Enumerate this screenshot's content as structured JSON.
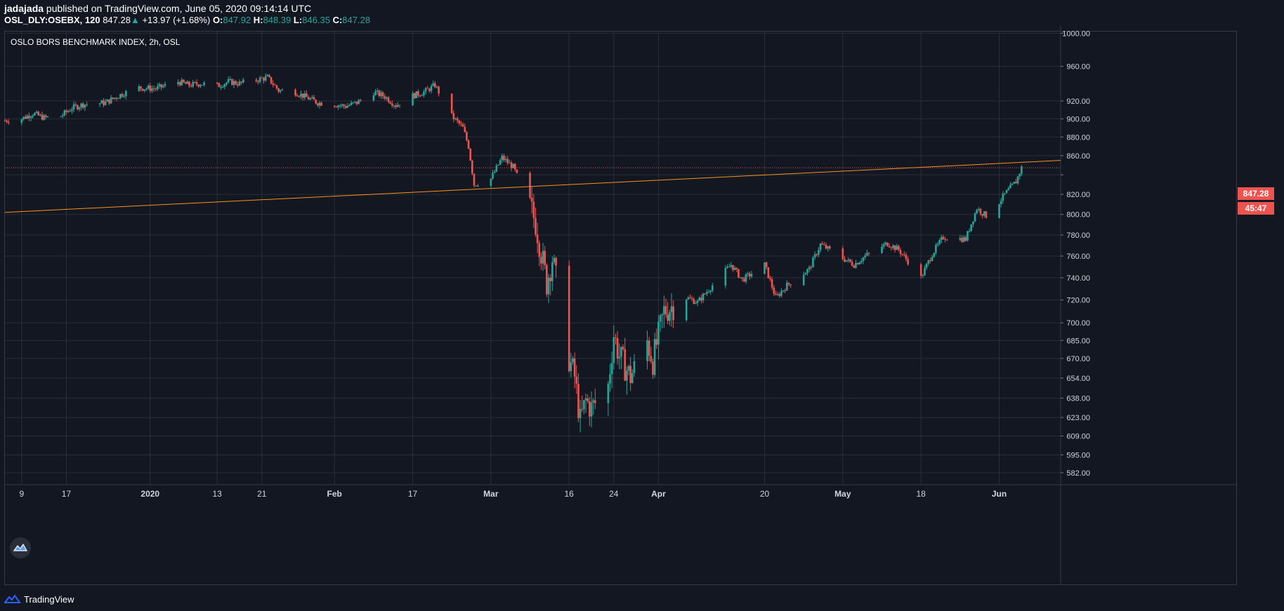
{
  "header": {
    "author": "jadajada",
    "published": "published on TradingView.com, June 05, 2020 09:14:14 UTC",
    "symbol": "OSL_DLY:OSEBX, 120",
    "last": "847.28",
    "change_arrow": "▲",
    "change": "+13.97 (+1.68%)",
    "o_label": "O:",
    "o_value": "847.92",
    "h_label": "H:",
    "h_value": "848.39",
    "l_label": "L:",
    "l_value": "846.35",
    "c_label": "C:",
    "c_value": "847.28"
  },
  "legend": {
    "title": "OSLO BORS BENCHMARK INDEX, 2h, OSL"
  },
  "price_label": {
    "value": "847.28",
    "countdown": "45:47"
  },
  "footer": {
    "brand": "TradingView"
  },
  "icons": {
    "logo": "tradingview-cloud-icon",
    "badge": "tradingview-badge-icon"
  },
  "colors": {
    "background": "#131722",
    "up": "#26a69a",
    "down": "#ef5350",
    "trendline": "#f7931a",
    "grid": "#2a2e39",
    "text": "#d1d4dc"
  },
  "chart_data": {
    "type": "candlestick",
    "title": "OSLO BORS BENCHMARK INDEX, 2h, OSL",
    "y_scale": "log",
    "ylim": [
      574,
      1002
    ],
    "y_ticks": [
      1000,
      960,
      920,
      900,
      880,
      860,
      840,
      820,
      800,
      780,
      760,
      740,
      720,
      700,
      685,
      670,
      654,
      638,
      623,
      609,
      595,
      582
    ],
    "y_tick_labels": [
      "1000.00",
      "960.00",
      "920.00",
      "900.00",
      "880.00",
      "860.00",
      "",
      "820.00",
      "800.00",
      "780.00",
      "760.00",
      "740.00",
      "720.00",
      "700.00",
      "685.00",
      "670.00",
      "654.00",
      "638.00",
      "623.00",
      "609.00",
      "595.00",
      "582.00"
    ],
    "x_labels": [
      {
        "label": "9",
        "date": "2019-12-09"
      },
      {
        "label": "17",
        "date": "2019-12-17"
      },
      {
        "label": "2020",
        "date": "2020-01-01"
      },
      {
        "label": "13",
        "date": "2020-01-13"
      },
      {
        "label": "21",
        "date": "2020-01-21"
      },
      {
        "label": "Feb",
        "date": "2020-02-03"
      },
      {
        "label": "17",
        "date": "2020-02-17"
      },
      {
        "label": "Mar",
        "date": "2020-03-02"
      },
      {
        "label": "16",
        "date": "2020-03-16"
      },
      {
        "label": "24",
        "date": "2020-03-24"
      },
      {
        "label": "Apr",
        "date": "2020-04-01"
      },
      {
        "label": "20",
        "date": "2020-04-20"
      },
      {
        "label": "May",
        "date": "2020-05-04"
      },
      {
        "label": "18",
        "date": "2020-05-18"
      },
      {
        "label": "Jun",
        "date": "2020-06-01"
      }
    ],
    "x_range": [
      "2019-12-06",
      "2020-06-12"
    ],
    "last_price": 847.28,
    "trendline": {
      "start": [
        "2019-12-06",
        802
      ],
      "end": [
        "2020-06-12",
        855
      ]
    },
    "closes": [
      [
        "2019-12-06",
        898
      ],
      [
        "2019-12-09",
        900
      ],
      [
        "2019-12-11",
        906
      ],
      [
        "2019-12-13",
        901
      ],
      [
        "2019-12-16",
        903
      ],
      [
        "2019-12-18",
        912
      ],
      [
        "2019-12-20",
        916
      ],
      [
        "2019-12-24",
        918
      ],
      [
        "2019-12-27",
        928
      ],
      [
        "2019-12-30",
        935
      ],
      [
        "2020-01-02",
        934
      ],
      [
        "2020-01-06",
        942
      ],
      [
        "2020-01-08",
        938
      ],
      [
        "2020-01-10",
        940
      ],
      [
        "2020-01-13",
        937
      ],
      [
        "2020-01-15",
        942
      ],
      [
        "2020-01-17",
        940
      ],
      [
        "2020-01-20",
        944
      ],
      [
        "2020-01-22",
        947
      ],
      [
        "2020-01-24",
        932
      ],
      [
        "2020-01-27",
        930
      ],
      [
        "2020-01-29",
        924
      ],
      [
        "2020-01-31",
        918
      ],
      [
        "2020-02-03",
        916
      ],
      [
        "2020-02-05",
        914
      ],
      [
        "2020-02-07",
        918
      ],
      [
        "2020-02-10",
        930
      ],
      [
        "2020-02-12",
        925
      ],
      [
        "2020-02-14",
        915
      ],
      [
        "2020-02-17",
        926
      ],
      [
        "2020-02-19",
        930
      ],
      [
        "2020-02-21",
        938
      ],
      [
        "2020-02-24",
        903
      ],
      [
        "2020-02-26",
        890
      ],
      [
        "2020-02-27",
        870
      ],
      [
        "2020-02-28",
        830
      ],
      [
        "2020-03-02",
        836
      ],
      [
        "2020-03-04",
        858
      ],
      [
        "2020-03-06",
        848
      ],
      [
        "2020-03-09",
        808
      ],
      [
        "2020-03-10",
        792
      ],
      [
        "2020-03-12",
        735
      ],
      [
        "2020-03-13",
        758
      ],
      [
        "2020-03-16",
        670
      ],
      [
        "2020-03-17",
        655
      ],
      [
        "2020-03-18",
        620
      ],
      [
        "2020-03-19",
        636
      ],
      [
        "2020-03-20",
        630
      ],
      [
        "2020-03-23",
        648
      ],
      [
        "2020-03-24",
        690
      ],
      [
        "2020-03-25",
        672
      ],
      [
        "2020-03-27",
        655
      ],
      [
        "2020-03-30",
        684
      ],
      [
        "2020-03-31",
        668
      ],
      [
        "2020-04-02",
        710
      ],
      [
        "2020-04-06",
        722
      ],
      [
        "2020-04-08",
        718
      ],
      [
        "2020-04-14",
        752
      ],
      [
        "2020-04-16",
        738
      ],
      [
        "2020-04-20",
        752
      ],
      [
        "2020-04-22",
        722
      ],
      [
        "2020-04-24",
        733
      ],
      [
        "2020-04-28",
        748
      ],
      [
        "2020-04-30",
        771
      ],
      [
        "2020-05-04",
        758
      ],
      [
        "2020-05-06",
        752
      ],
      [
        "2020-05-08",
        760
      ],
      [
        "2020-05-12",
        772
      ],
      [
        "2020-05-14",
        766
      ],
      [
        "2020-05-18",
        740
      ],
      [
        "2020-05-20",
        762
      ],
      [
        "2020-05-22",
        778
      ],
      [
        "2020-05-26",
        776
      ],
      [
        "2020-05-28",
        806
      ],
      [
        "2020-05-30",
        797
      ],
      [
        "2020-06-02",
        820
      ],
      [
        "2020-06-04",
        833
      ],
      [
        "2020-06-05",
        847.28
      ]
    ]
  }
}
